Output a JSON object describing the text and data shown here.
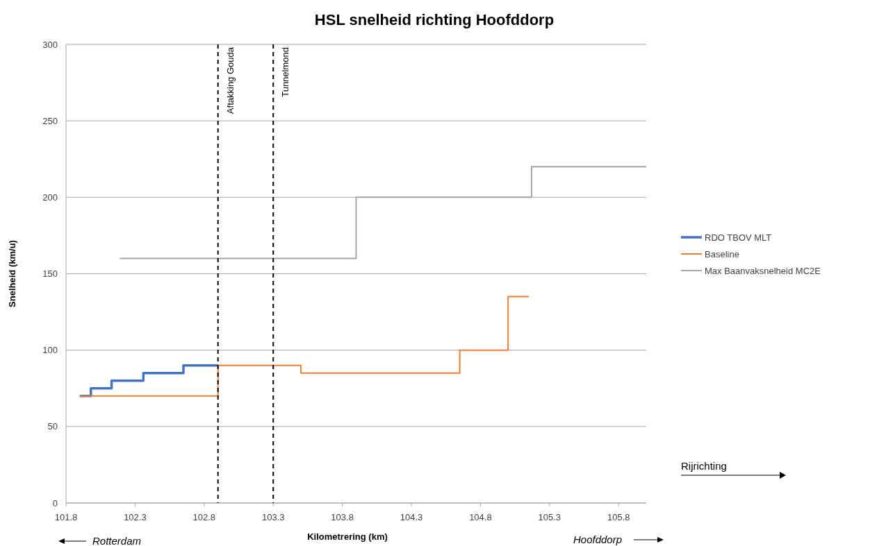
{
  "chart_data": {
    "type": "step",
    "title": "HSL snelheid richting Hoofddorp",
    "xlabel": "Kilometrering (km)",
    "ylabel": "Snelheid (km/u)",
    "xlim": [
      101.8,
      106.0
    ],
    "xticks": [
      101.8,
      102.3,
      102.8,
      103.3,
      103.8,
      104.3,
      104.8,
      105.3,
      105.8
    ],
    "ylim": [
      0,
      300
    ],
    "yticks": [
      0,
      50,
      100,
      150,
      200,
      250,
      300
    ],
    "grid": "y",
    "legend": "right",
    "line_style": "solid",
    "marker": "none",
    "series": [
      {
        "name": "RDO TBOV MLT",
        "color": "#4472c4",
        "x": [
          101.9,
          101.98,
          102.13,
          102.36,
          102.65,
          102.9
        ],
        "values": [
          70,
          75,
          80,
          85,
          90,
          90
        ]
      },
      {
        "name": "Baseline",
        "color": "#ed7d31",
        "x": [
          101.9,
          102.9,
          103.5,
          104.65,
          105.0,
          105.15
        ],
        "values": [
          70,
          90,
          85,
          100,
          135,
          135
        ]
      },
      {
        "name": "Max Baanvaksnelheid MC2E",
        "color": "#a5a5a5",
        "x": [
          102.19,
          103.9,
          105.17,
          106.0
        ],
        "values": [
          160,
          200,
          220,
          220
        ]
      }
    ],
    "ref_lines": [
      {
        "axis": "x",
        "value": 102.9,
        "label": "Aftakking Gouda",
        "color": "#000000",
        "line_style": "dashed"
      },
      {
        "axis": "x",
        "value": 103.3,
        "label": "Tunnelmond",
        "color": "#000000",
        "line_style": "dashed"
      }
    ],
    "annotations": [
      "Rijrichting",
      "Rotterdam",
      "Hoofddorp"
    ]
  }
}
